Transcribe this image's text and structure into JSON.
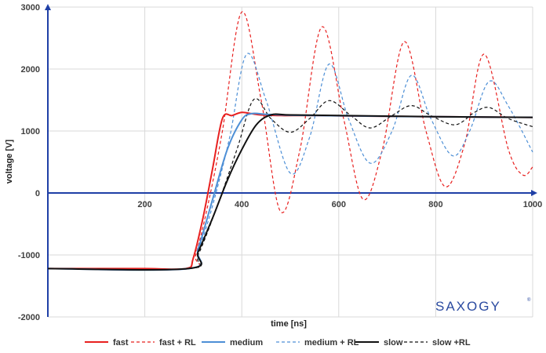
{
  "chart_data": {
    "type": "line",
    "xlabel": "time [ns]",
    "ylabel": "voltage [V]",
    "xlim": [
      0,
      1000
    ],
    "ylim": [
      -2000,
      3000
    ],
    "xticks": [
      200,
      400,
      600,
      800,
      1000
    ],
    "yticks": [
      -2000,
      -1000,
      0,
      1000,
      2000,
      3000
    ],
    "grid": true,
    "legend_position": "bottom",
    "brand": "SAXOGY",
    "brand_mark": "®",
    "series": [
      {
        "name": "fast",
        "color": "#e8201f",
        "dash": "solid",
        "width": 2,
        "x": [
          0,
          100,
          200,
          285,
          300,
          320,
          340,
          360,
          380,
          400,
          420,
          440,
          480,
          550,
          650,
          800,
          1000
        ],
        "y": [
          -1220,
          -1220,
          -1220,
          -1220,
          -1050,
          -400,
          400,
          1200,
          1250,
          1300,
          1280,
          1260,
          1250,
          1250,
          1240,
          1230,
          1220
        ]
      },
      {
        "name": "fast + RL",
        "color": "#e8201f",
        "dash": "dashed",
        "width": 1.2,
        "x": [
          0,
          290,
          305,
          330,
          360,
          400,
          440,
          480,
          520,
          565,
          610,
          650,
          690,
          735,
          780,
          820,
          860,
          900,
          950,
          980,
          1000
        ],
        "y": [
          -1220,
          -1220,
          -1000,
          -200,
          1000,
          2920,
          1500,
          -300,
          700,
          2680,
          1200,
          -100,
          700,
          2440,
          1000,
          100,
          800,
          2240,
          700,
          290,
          420
        ]
      },
      {
        "name": "medium",
        "color": "#4d8fd6",
        "dash": "solid",
        "width": 2,
        "x": [
          0,
          290,
          310,
          340,
          370,
          400,
          420,
          450,
          500,
          600,
          800,
          1000
        ],
        "y": [
          -1220,
          -1220,
          -900,
          -100,
          700,
          1180,
          1280,
          1270,
          1255,
          1245,
          1230,
          1220
        ]
      },
      {
        "name": "medium + RL",
        "color": "#4d8fd6",
        "dash": "dashed",
        "width": 1.2,
        "x": [
          0,
          290,
          310,
          340,
          375,
          410,
          450,
          500,
          540,
          580,
          620,
          665,
          710,
          750,
          790,
          835,
          870,
          910,
          950,
          1000
        ],
        "y": [
          -1220,
          -1220,
          -950,
          -200,
          900,
          2240,
          1500,
          320,
          900,
          2080,
          1200,
          480,
          1000,
          1900,
          1200,
          600,
          1000,
          1800,
          1400,
          660
        ]
      },
      {
        "name": "slow",
        "color": "#111111",
        "dash": "solid",
        "width": 2,
        "x": [
          0,
          290,
          310,
          340,
          370,
          400,
          430,
          460,
          500,
          600,
          800,
          1000
        ],
        "y": [
          -1220,
          -1220,
          -950,
          -400,
          200,
          700,
          1100,
          1260,
          1260,
          1250,
          1230,
          1220
        ]
      },
      {
        "name": "slow +RL",
        "color": "#111111",
        "dash": "dashed",
        "width": 1.2,
        "x": [
          0,
          290,
          310,
          350,
          390,
          425,
          460,
          500,
          540,
          580,
          625,
          665,
          710,
          750,
          790,
          840,
          880,
          910,
          950,
          1000
        ],
        "y": [
          -1220,
          -1220,
          -1000,
          -200,
          700,
          1510,
          1200,
          980,
          1200,
          1490,
          1250,
          1050,
          1250,
          1410,
          1250,
          1100,
          1300,
          1380,
          1200,
          1070
        ]
      }
    ]
  }
}
